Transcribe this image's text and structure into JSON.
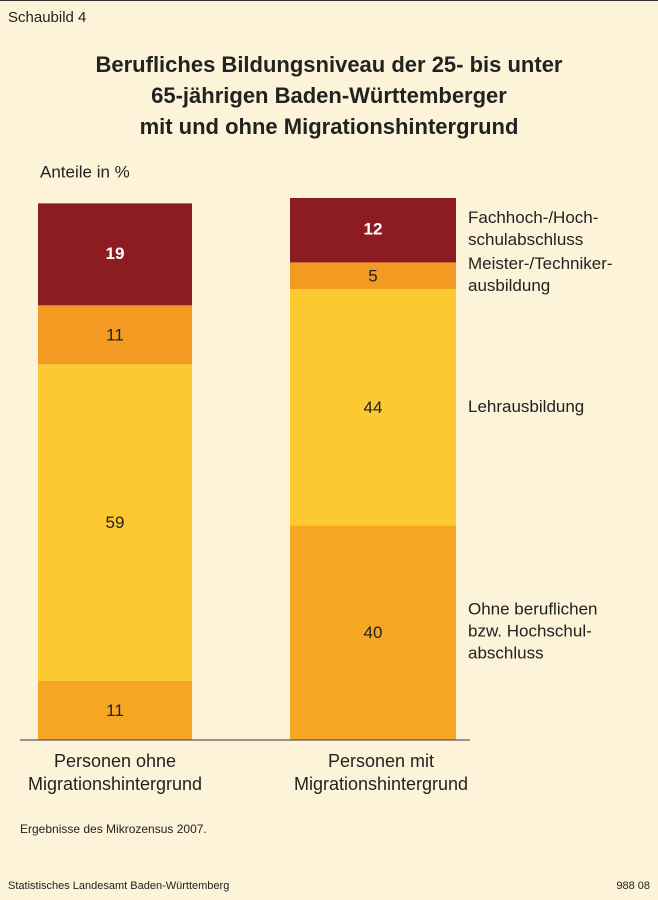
{
  "chart_data": {
    "type": "stacked_bar",
    "label": "Schaubild 4",
    "title": "Berufliches Bildungsniveau der 25- bis unter\n65-jährigen Baden-Württemberger\nmit und ohne Migrationshintergrund",
    "unit_label": "Anteile in %",
    "categories": [
      "Personen ohne\nMigrationshintergrund",
      "Personen mit\nMigrationshintergrund"
    ],
    "series": [
      {
        "name": "Ohne beruflichen\nbzw. Hochschul-\nabschluss",
        "color": "#f5a623",
        "values": [
          11,
          40
        ]
      },
      {
        "name": "Lehrausbildung",
        "color": "#fdc930",
        "values": [
          59,
          44
        ]
      },
      {
        "name": "Meister-/Techniker-\nausbildung",
        "color": "#f39a22",
        "values": [
          11,
          5
        ]
      },
      {
        "name": "Fachhoch-/Hoch-\nschulabschluss",
        "color": "#8d1c22",
        "values": [
          19,
          12
        ]
      }
    ],
    "note": "Ergebnisse des Mikrozensus 2007.",
    "source": "Statistisches Landesamt Baden-Württemberg",
    "code": "988 08"
  }
}
